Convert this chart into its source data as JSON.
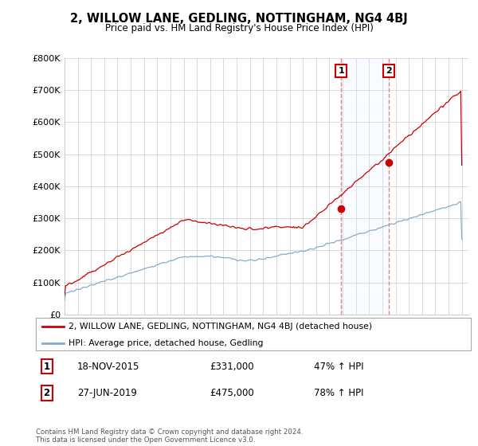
{
  "title": "2, WILLOW LANE, GEDLING, NOTTINGHAM, NG4 4BJ",
  "subtitle": "Price paid vs. HM Land Registry's House Price Index (HPI)",
  "ylim": [
    0,
    800000
  ],
  "xlim_start": 1995.0,
  "xlim_end": 2025.5,
  "sale1_year": 2015.88,
  "sale1_price": 331000,
  "sale1_label": "18-NOV-2015",
  "sale1_amt": "£331,000",
  "sale1_pct": "47% ↑ HPI",
  "sale2_year": 2019.49,
  "sale2_price": 475000,
  "sale2_label": "27-JUN-2019",
  "sale2_amt": "£475,000",
  "sale2_pct": "78% ↑ HPI",
  "red_line_color": "#cc0000",
  "blue_line_color": "#88aacc",
  "shade_color": "#ddeeff",
  "vline_color": "#dd8888",
  "marker_box_color": "#cc0000",
  "legend_label_red": "2, WILLOW LANE, GEDLING, NOTTINGHAM, NG4 4BJ (detached house)",
  "legend_label_blue": "HPI: Average price, detached house, Gedling",
  "footnote": "Contains HM Land Registry data © Crown copyright and database right 2024.\nThis data is licensed under the Open Government Licence v3.0.",
  "background_color": "#ffffff",
  "grid_color": "#cccccc"
}
